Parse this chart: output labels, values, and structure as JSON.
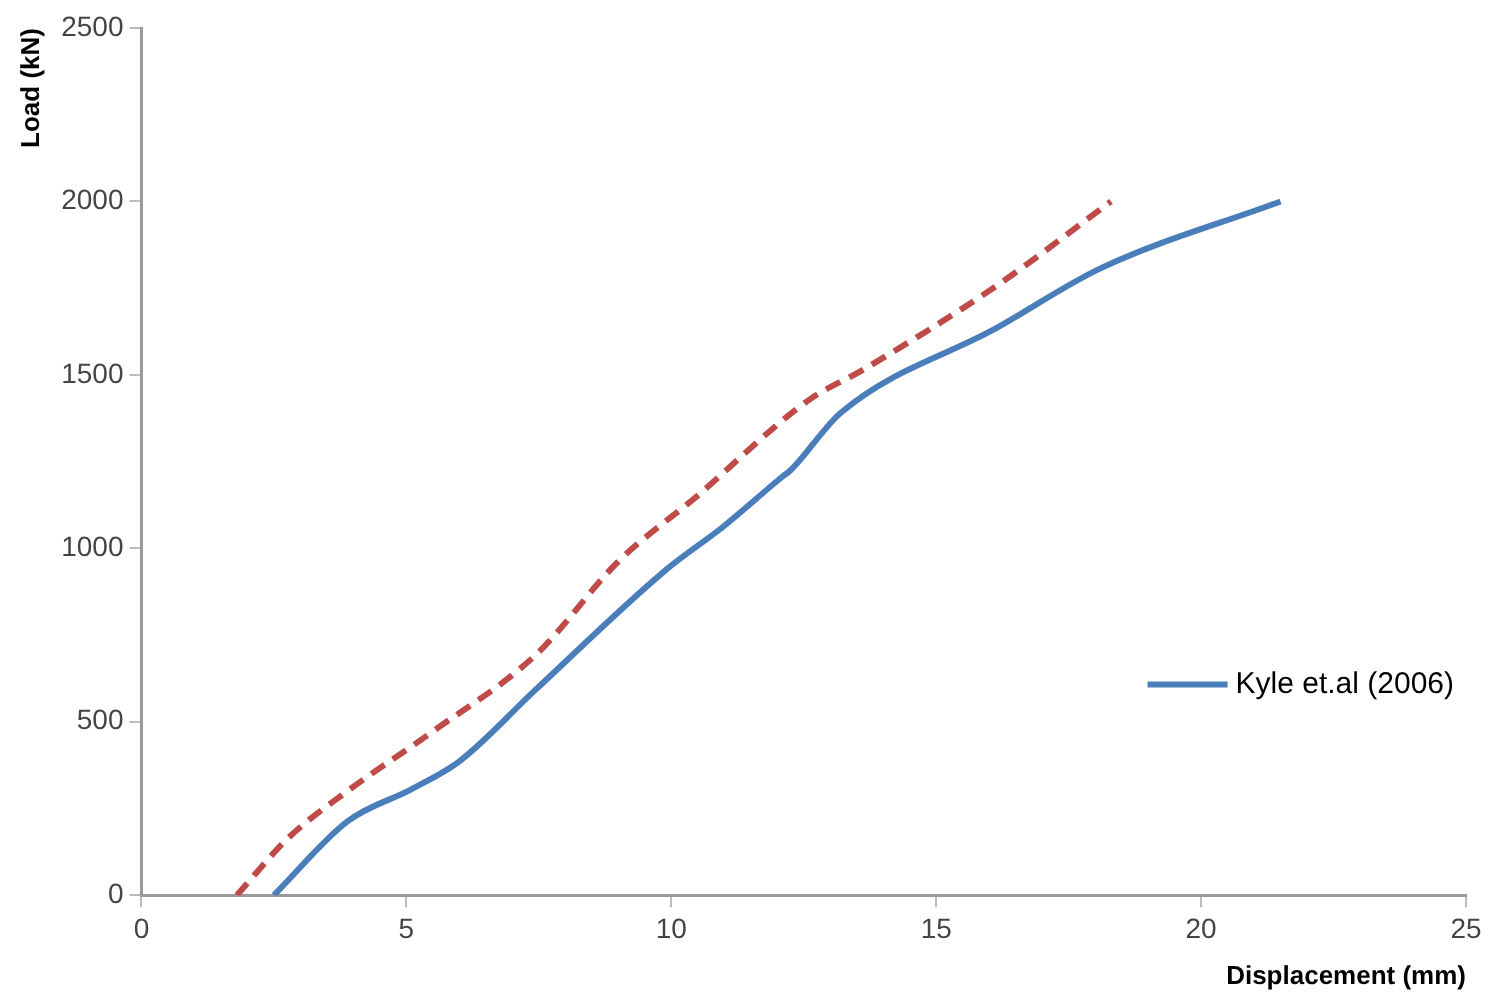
{
  "chart_data": {
    "type": "line",
    "xlabel": "Displacement (mm)",
    "ylabel": "Load (kN)",
    "xlim": [
      0,
      25
    ],
    "xticks": [
      0,
      5,
      10,
      15,
      20,
      25
    ],
    "ylim": [
      0,
      2500
    ],
    "yticks": [
      0,
      500,
      1000,
      1500,
      2000,
      2500
    ],
    "grid": false,
    "legend": "bottom right",
    "marker": "none",
    "series": [
      {
        "name": "Kyle et.al (2006)",
        "color": "#4a7ebb",
        "line_style": "solid",
        "x": [
          2.5,
          3.9,
          5.1,
          6.0,
          7.45,
          9.9,
          10.96,
          12.1,
          12.25,
          13.2,
          16.15,
          18.1,
          21.5
        ],
        "values": [
          0,
          214,
          306,
          386,
          594,
          938,
          1060,
          1207,
          1225,
          1391,
          1636,
          1807,
          2000
        ]
      },
      {
        "color": "#be4b48",
        "line_style": "dashed",
        "x": [
          1.8,
          2.77,
          3.94,
          5.5,
          7.45,
          9.0,
          10.45,
          12.6,
          13.6,
          16.15,
          18.3
        ],
        "values": [
          0,
          165,
          306,
          472,
          694,
          962,
          1146,
          1428,
          1513,
          1758,
          2000
        ]
      }
    ]
  }
}
